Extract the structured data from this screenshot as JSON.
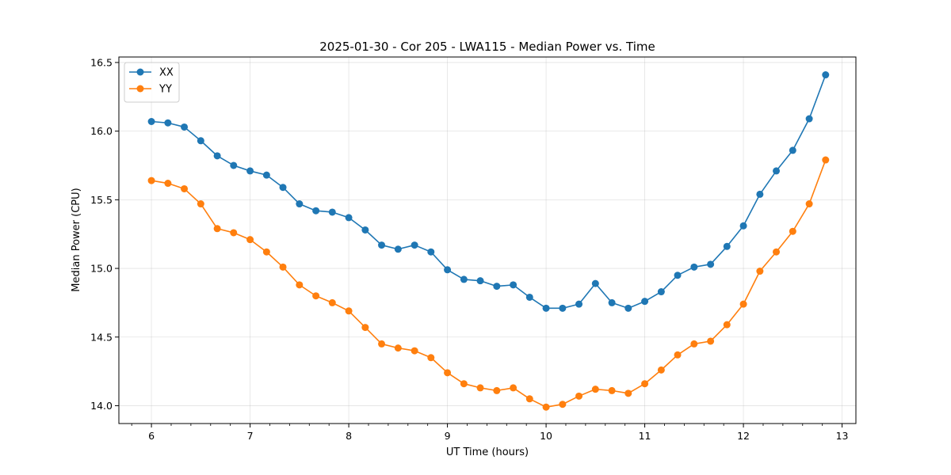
{
  "chart_data": {
    "type": "line",
    "title": "2025-01-30 - Cor 205 - LWA115 - Median Power vs. Time",
    "xlabel": "UT Time (hours)",
    "ylabel": "Median Power (CPU)",
    "xlim": [
      5.67,
      13.14
    ],
    "ylim": [
      13.87,
      16.54
    ],
    "xticks": [
      6,
      7,
      8,
      9,
      10,
      11,
      12,
      13
    ],
    "xtick_labels": [
      "6",
      "7",
      "8",
      "9",
      "10",
      "11",
      "12",
      "13"
    ],
    "xminor_step": 0.2,
    "yticks": [
      14.0,
      14.5,
      15.0,
      15.5,
      16.0,
      16.5
    ],
    "ytick_labels": [
      "14.0",
      "14.5",
      "15.0",
      "15.5",
      "16.0",
      "16.5"
    ],
    "grid": true,
    "legend_position": "top-left",
    "x": [
      6.0,
      6.167,
      6.333,
      6.5,
      6.667,
      6.833,
      7.0,
      7.167,
      7.333,
      7.5,
      7.667,
      7.833,
      8.0,
      8.167,
      8.333,
      8.5,
      8.667,
      8.833,
      9.0,
      9.167,
      9.333,
      9.5,
      9.667,
      9.833,
      10.0,
      10.167,
      10.333,
      10.5,
      10.667,
      10.833,
      11.0,
      11.167,
      11.333,
      11.5,
      11.667,
      11.833,
      12.0,
      12.167,
      12.333,
      12.5,
      12.667,
      12.833
    ],
    "series": [
      {
        "name": "XX",
        "color": "#1f77b4",
        "values": [
          16.07,
          16.06,
          16.03,
          15.93,
          15.82,
          15.75,
          15.71,
          15.68,
          15.59,
          15.47,
          15.42,
          15.41,
          15.37,
          15.28,
          15.17,
          15.14,
          15.17,
          15.12,
          14.99,
          14.92,
          14.91,
          14.87,
          14.88,
          14.79,
          14.71,
          14.71,
          14.74,
          14.89,
          14.75,
          14.71,
          14.76,
          14.83,
          14.95,
          15.01,
          15.03,
          15.16,
          15.31,
          15.54,
          15.71,
          15.86,
          16.09,
          16.41
        ]
      },
      {
        "name": "YY",
        "color": "#ff7f0e",
        "values": [
          15.64,
          15.62,
          15.58,
          15.47,
          15.29,
          15.26,
          15.21,
          15.12,
          15.01,
          14.88,
          14.8,
          14.75,
          14.69,
          14.57,
          14.45,
          14.42,
          14.4,
          14.35,
          14.24,
          14.16,
          14.13,
          14.11,
          14.13,
          14.05,
          13.99,
          14.01,
          14.07,
          14.12,
          14.11,
          14.09,
          14.16,
          14.26,
          14.37,
          14.45,
          14.47,
          14.59,
          14.74,
          14.98,
          15.12,
          15.27,
          15.47,
          15.79
        ]
      }
    ]
  }
}
